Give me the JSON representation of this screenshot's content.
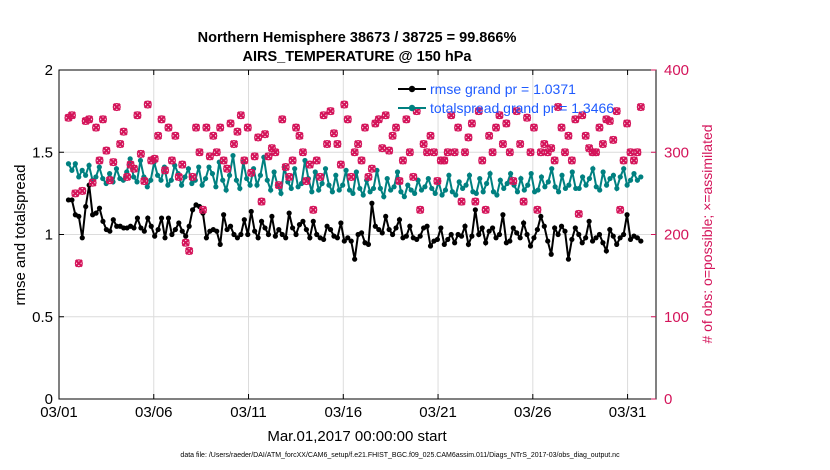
{
  "chart_data": {
    "type": "line",
    "title": "Northern Hemisphere 38673 / 38725 = 99.866%",
    "subtitle": "AIRS_TEMPERATURE @ 150 hPa",
    "xlabel": "Mar.01,2017 00:00:00 start",
    "ylabel": "rmse and totalspread",
    "ylabel_right": "# of obs: o=possible; ×=assimilated",
    "footer": "data file: /Users/raeder/DAI/ATM_forcXX/CAM6_setup/f.e21.FHIST_BGC.f09_025.CAM6assim.011/Diags_NTrS_2017-03/obs_diag_output.nc",
    "xlim": [
      0,
      31.5
    ],
    "ylim": [
      0,
      2
    ],
    "ylim_right": [
      0,
      400
    ],
    "x_ticks": [
      0,
      5,
      10,
      15,
      20,
      25,
      30
    ],
    "x_tick_labels": [
      "03/01",
      "03/06",
      "03/11",
      "03/16",
      "03/21",
      "03/26",
      "03/31"
    ],
    "y_ticks": [
      0,
      0.5,
      1,
      1.5,
      2
    ],
    "y_tick_labels": [
      "0",
      "0.5",
      "1",
      "1.5",
      "2"
    ],
    "y_right_ticks": [
      0,
      100,
      200,
      300,
      400
    ],
    "y_right_tick_labels": [
      "0",
      "100",
      "200",
      "300",
      "400"
    ],
    "grid": true,
    "legend_position": "top-right",
    "series": [
      {
        "name": "rmse grand pr = 1.0371",
        "color": "#000000",
        "marker": "circle",
        "axis": "left",
        "values": [
          1.21,
          1.21,
          1.12,
          1.11,
          0.98,
          1.17,
          1.3,
          1.12,
          1.13,
          1.16,
          1.08,
          1.03,
          1.02,
          1.09,
          1.05,
          1.05,
          1.04,
          1.04,
          1.05,
          1.04,
          1.1,
          1.04,
          1.02,
          1.1,
          1.05,
          0.99,
          1.03,
          1.1,
          0.98,
          1.1,
          1.0,
          1.03,
          1.07,
          1.02,
          0.99,
          1.05,
          1.15,
          1.18,
          1.17,
          1.13,
          0.98,
          1.02,
          1.03,
          1.02,
          0.94,
          1.12,
          1.03,
          1.05,
          1.0,
          0.98,
          1.0,
          1.09,
          1.0,
          1.14,
          1.02,
          0.98,
          1.08,
          1.04,
          1.0,
          1.11,
          0.99,
          1.03,
          1.0,
          0.98,
          1.13,
          1.04,
          1.0,
          1.06,
          1.08,
          1.03,
          0.98,
          1.08,
          1.0,
          0.98,
          0.97,
          1.05,
          1.03,
          0.99,
          0.98,
          1.07,
          0.96,
          0.98,
          0.96,
          0.85,
          1.0,
          1.01,
          0.95,
          0.94,
          1.19,
          1.05,
          1.03,
          1.01,
          1.11,
          1.03,
          1.0,
          1.04,
          1.09,
          0.98,
          0.99,
          1.05,
          0.98,
          0.97,
          0.99,
          1.04,
          1.05,
          0.93,
          0.96,
          0.97,
          1.04,
          0.94,
          0.97,
          1.0,
          0.95,
          1.0,
          0.99,
          1.05,
          0.94,
          0.99,
          1.15,
          1.0,
          1.04,
          0.95,
          1.02,
          1.04,
          0.98,
          1.0,
          1.12,
          0.95,
          0.96,
          1.04,
          1.01,
          0.98,
          1.07,
          1.0,
          0.93,
          0.98,
          1.03,
          1.11,
          1.05,
          0.96,
          0.88,
          1.04,
          1.0,
          1.05,
          1.02,
          0.85,
          0.97,
          1.04,
          1.0,
          0.95,
          0.98,
          1.08,
          0.96,
          0.98,
          1.0,
          0.95,
          0.9,
          1.03,
          0.99,
          0.94,
          0.98,
          1.0,
          1.12,
          0.97,
          0.99,
          0.98,
          0.96
        ]
      },
      {
        "name": "totalspread grand pr = 1.3466",
        "color": "#008080",
        "marker": "circle",
        "axis": "left",
        "values": [
          1.43,
          1.39,
          1.43,
          1.35,
          1.39,
          1.36,
          1.42,
          1.33,
          1.35,
          1.41,
          1.34,
          1.31,
          1.37,
          1.32,
          1.4,
          1.34,
          1.33,
          1.38,
          1.46,
          1.35,
          1.32,
          1.45,
          1.35,
          1.29,
          1.33,
          1.44,
          1.36,
          1.33,
          1.41,
          1.3,
          1.33,
          1.42,
          1.37,
          1.3,
          1.35,
          1.4,
          1.31,
          1.33,
          1.41,
          1.3,
          1.34,
          1.41,
          1.37,
          1.29,
          1.44,
          1.33,
          1.27,
          1.36,
          1.48,
          1.33,
          1.28,
          1.44,
          1.34,
          1.3,
          1.4,
          1.3,
          1.36,
          1.47,
          1.33,
          1.27,
          1.38,
          1.3,
          1.25,
          1.41,
          1.32,
          1.28,
          1.4,
          1.29,
          1.31,
          1.45,
          1.34,
          1.26,
          1.38,
          1.27,
          1.31,
          1.4,
          1.3,
          1.26,
          1.36,
          1.27,
          1.3,
          1.39,
          1.27,
          1.25,
          1.38,
          1.28,
          1.24,
          1.33,
          1.26,
          1.28,
          1.39,
          1.28,
          1.23,
          1.34,
          1.27,
          1.29,
          1.38,
          1.26,
          1.23,
          1.3,
          1.27,
          1.25,
          1.33,
          1.27,
          1.29,
          1.34,
          1.28,
          1.25,
          1.32,
          1.24,
          1.27,
          1.36,
          1.26,
          1.24,
          1.32,
          1.28,
          1.3,
          1.36,
          1.26,
          1.25,
          1.34,
          1.26,
          1.31,
          1.37,
          1.26,
          1.24,
          1.33,
          1.28,
          1.31,
          1.37,
          1.3,
          1.26,
          1.34,
          1.27,
          1.3,
          1.37,
          1.26,
          1.27,
          1.35,
          1.29,
          1.32,
          1.4,
          1.29,
          1.26,
          1.36,
          1.28,
          1.3,
          1.38,
          1.28,
          1.28,
          1.35,
          1.3,
          1.34,
          1.4,
          1.29,
          1.27,
          1.38,
          1.3,
          1.34,
          1.36,
          1.28,
          1.35,
          1.4,
          1.3,
          1.33,
          1.37,
          1.33,
          1.35
        ]
      },
      {
        "name": "# of obs assimilated",
        "color": "#d4145a",
        "marker": "x",
        "axis": "right",
        "values": [
          342,
          345,
          250,
          165,
          253,
          338,
          340,
          263,
          330,
          290,
          340,
          302,
          266,
          288,
          355,
          310,
          325,
          270,
          285,
          280,
          345,
          298,
          265,
          358,
          290,
          292,
          320,
          340,
          278,
          330,
          290,
          320,
          270,
          285,
          190,
          180,
          270,
          330,
          300,
          230,
          330,
          295,
          320,
          300,
          330,
          290,
          280,
          335,
          310,
          325,
          345,
          290,
          330,
          275,
          295,
          318,
          240,
          322,
          295,
          305,
          300,
          260,
          340,
          282,
          270,
          290,
          330,
          320,
          300,
          265,
          285,
          230,
          290,
          270,
          345,
          310,
          350,
          323,
          310,
          285,
          358,
          340,
          270,
          300,
          310,
          290,
          330,
          270,
          280,
          335,
          340,
          305,
          345,
          302,
          320,
          330,
          265,
          290,
          340,
          300,
          270,
          350,
          230,
          310,
          300,
          320,
          300,
          265,
          290,
          290,
          300,
          345,
          300,
          330,
          240,
          300,
          318,
          335,
          240,
          350,
          290,
          230,
          320,
          300,
          330,
          345,
          310,
          335,
          300,
          265,
          350,
          310,
          240,
          342,
          300,
          330,
          230,
          300,
          310,
          300,
          305,
          290,
          355,
          330,
          300,
          320,
          290,
          340,
          225,
          345,
          320,
          305,
          300,
          300,
          330,
          310,
          340,
          338,
          315,
          350,
          230,
          290,
          335,
          300,
          290,
          300,
          355
        ]
      },
      {
        "name": "# of obs possible",
        "color": "#d4145a",
        "marker": "circle-open",
        "axis": "right",
        "values": [
          342,
          345,
          250,
          165,
          253,
          338,
          340,
          263,
          330,
          290,
          340,
          302,
          266,
          288,
          355,
          310,
          325,
          270,
          285,
          280,
          345,
          298,
          265,
          358,
          290,
          292,
          320,
          340,
          278,
          330,
          290,
          320,
          270,
          285,
          190,
          180,
          270,
          330,
          300,
          230,
          330,
          295,
          320,
          300,
          330,
          290,
          280,
          335,
          310,
          325,
          345,
          290,
          330,
          275,
          295,
          318,
          240,
          322,
          295,
          305,
          300,
          260,
          340,
          282,
          270,
          290,
          330,
          320,
          300,
          265,
          285,
          230,
          290,
          270,
          345,
          310,
          350,
          323,
          310,
          285,
          358,
          340,
          270,
          300,
          310,
          290,
          330,
          270,
          280,
          335,
          340,
          305,
          345,
          302,
          320,
          330,
          265,
          290,
          340,
          300,
          270,
          350,
          230,
          310,
          300,
          320,
          300,
          265,
          290,
          290,
          300,
          345,
          300,
          330,
          240,
          300,
          318,
          335,
          240,
          350,
          290,
          230,
          320,
          300,
          330,
          345,
          310,
          335,
          300,
          265,
          350,
          310,
          240,
          342,
          300,
          330,
          230,
          300,
          310,
          300,
          305,
          290,
          355,
          330,
          300,
          320,
          290,
          340,
          225,
          345,
          320,
          305,
          300,
          300,
          330,
          310,
          340,
          338,
          315,
          350,
          230,
          290,
          335,
          300,
          290,
          300,
          355
        ]
      }
    ]
  }
}
